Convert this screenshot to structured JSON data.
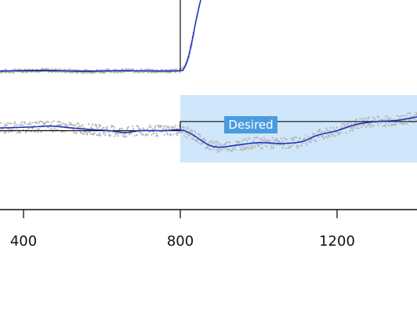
{
  "chart_data": {
    "type": "line",
    "x_ticks": [
      400,
      800,
      1200
    ],
    "xlim": [
      340,
      1404
    ],
    "highlight": {
      "label": "Desired",
      "x_start": 800,
      "x_end": 1404,
      "color": "#cfe6fb",
      "badge_color": "#4a9be0"
    },
    "top_panel": {
      "ylim": [
        0,
        100
      ],
      "target_step": [
        [
          340,
          5
        ],
        [
          800,
          5
        ],
        [
          800,
          100
        ]
      ],
      "fit": [
        [
          340,
          4.5
        ],
        [
          450,
          5.8
        ],
        [
          550,
          4.2
        ],
        [
          650,
          5.2
        ],
        [
          750,
          4.6
        ],
        [
          800,
          5.2
        ],
        [
          810,
          9
        ],
        [
          820,
          22
        ],
        [
          830,
          45
        ],
        [
          840,
          72
        ],
        [
          852,
          100
        ]
      ],
      "scatter_spread": 2.5
    },
    "bottom_panel": {
      "ylim": [
        0,
        100
      ],
      "target_step": [
        [
          340,
          50
        ],
        [
          800,
          50
        ],
        [
          800,
          60
        ],
        [
          1404,
          60
        ]
      ],
      "fit": [
        [
          340,
          53
        ],
        [
          420,
          54
        ],
        [
          470,
          55
        ],
        [
          550,
          52
        ],
        [
          620,
          50
        ],
        [
          660,
          48
        ],
        [
          700,
          50
        ],
        [
          760,
          50
        ],
        [
          800,
          51
        ],
        [
          830,
          46
        ],
        [
          870,
          35
        ],
        [
          900,
          32
        ],
        [
          940,
          34
        ],
        [
          1000,
          37
        ],
        [
          1060,
          36
        ],
        [
          1110,
          38
        ],
        [
          1150,
          45
        ],
        [
          1200,
          50
        ],
        [
          1250,
          57
        ],
        [
          1300,
          60
        ],
        [
          1350,
          61
        ],
        [
          1404,
          65
        ]
      ],
      "scatter_spread": 6
    },
    "colors": {
      "fit": "#2233bb",
      "target": "#111111",
      "points": "#b7b7b7",
      "axis": "#111111"
    }
  }
}
